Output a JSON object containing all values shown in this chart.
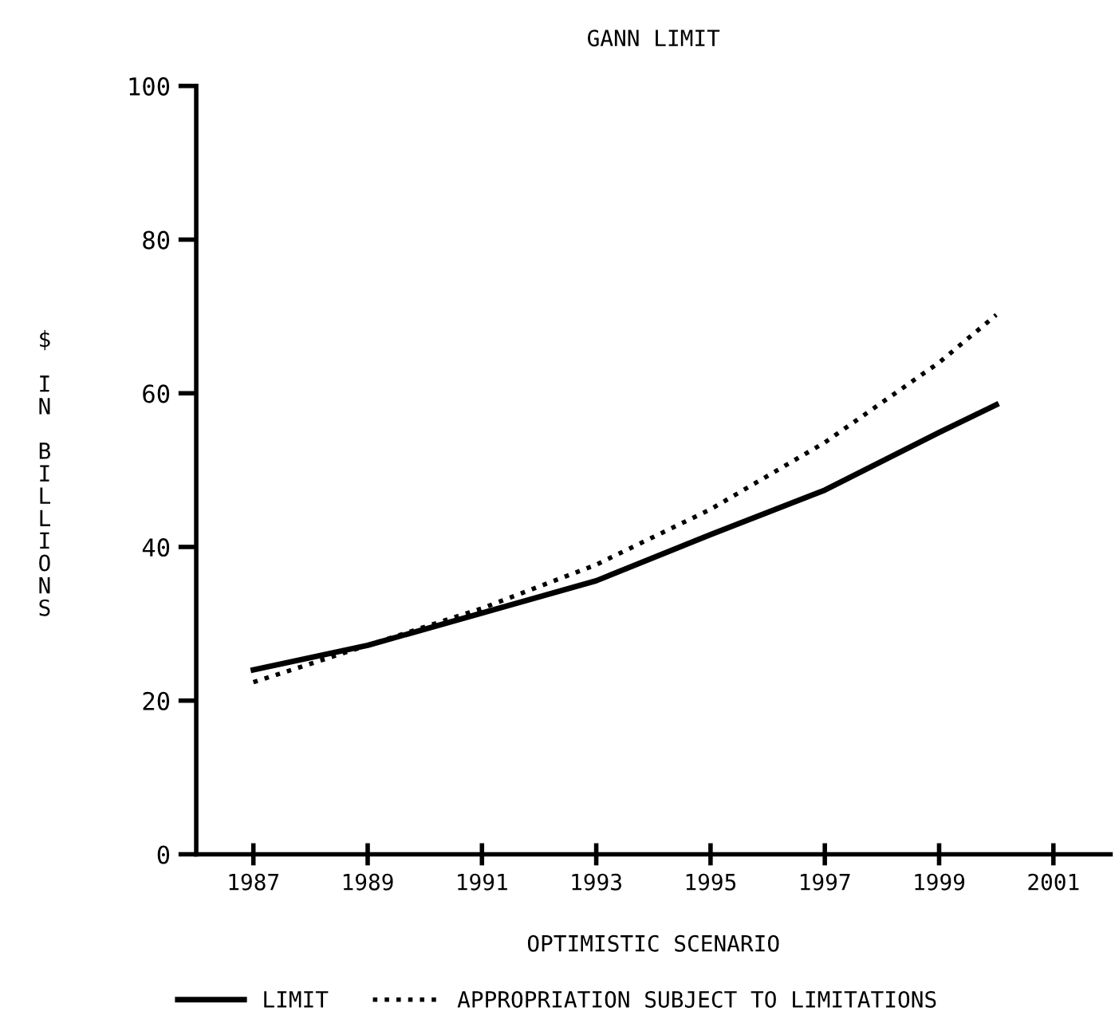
{
  "chart_data": {
    "type": "line",
    "title": "GANN LIMIT",
    "xlabel": "OPTIMISTIC SCENARIO",
    "ylabel": "$ IN BILLIONS",
    "x": [
      1987,
      1989,
      1991,
      1993,
      1995,
      1997,
      1999,
      2000
    ],
    "series": [
      {
        "name": "LIMIT",
        "color": "#000000",
        "line_style": "solid",
        "values": [
          24,
          27.2,
          31.4,
          35.6,
          41.6,
          47.4,
          54.9,
          58.5
        ]
      },
      {
        "name": "APPROPRIATION SUBJECT TO LIMITATIONS",
        "color": "#000000",
        "line_style": "dotted",
        "values": [
          22.4,
          27.2,
          32,
          37.7,
          44.9,
          53.6,
          64,
          70.2
        ]
      }
    ],
    "xlim": [
      1986,
      2002
    ],
    "xticks": [
      1987,
      1989,
      1991,
      1993,
      1995,
      1997,
      1999,
      2001
    ],
    "ylim": [
      0,
      100
    ],
    "yticks": [
      0,
      20,
      40,
      60,
      80,
      100
    ],
    "grid": false,
    "legend": "bottom",
    "marker": "none"
  }
}
